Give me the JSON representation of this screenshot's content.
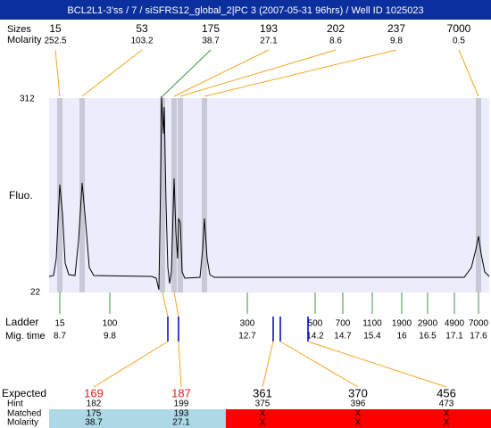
{
  "title": "BCL2L1-3'ss / 7 / siSFRS12_global_2|PC 3 (2007-05-31 96hrs) / Well ID 1025023",
  "peaks": {
    "labels": [
      "Sizes",
      "Molarity"
    ],
    "sizes": [
      15,
      53,
      175,
      193,
      202,
      237,
      7000
    ],
    "molarity": [
      252.5,
      103.2,
      38.7,
      27.1,
      8.6,
      9.8,
      0.5
    ]
  },
  "axis": {
    "label": "Fluo.",
    "max": 312,
    "min": 22
  },
  "ladder": {
    "labels": [
      "Ladder",
      "Mig. time"
    ],
    "sizes": [
      15,
      100,
      300,
      500,
      700,
      1100,
      1900,
      2900,
      4900,
      7000
    ],
    "times": [
      8.7,
      9.8,
      12.7,
      14.2,
      14.7,
      15.4,
      16,
      16.5,
      17.1,
      17.6
    ]
  },
  "expected": {
    "labels": [
      "Expected",
      "Hint",
      "Matched",
      "Molarity"
    ],
    "columns": [
      {
        "expected": 169,
        "hint": 182,
        "matched": 175,
        "molarity": 38.7
      },
      {
        "expected": 187,
        "hint": 199,
        "matched": 193,
        "molarity": 27.1
      },
      {
        "expected": 361,
        "hint": 375,
        "matched": "X",
        "molarity": "X"
      },
      {
        "expected": 370,
        "hint": 396,
        "matched": "X",
        "molarity": "X"
      },
      {
        "expected": 456,
        "hint": 473,
        "matched": "X",
        "molarity": "X"
      }
    ]
  }
}
